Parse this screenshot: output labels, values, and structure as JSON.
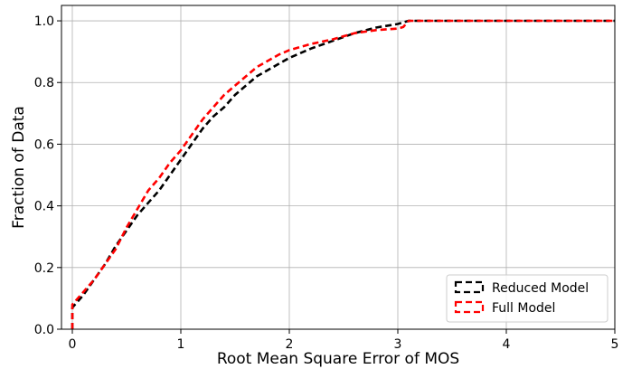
{
  "chart_data": {
    "type": "line",
    "title": "",
    "xlabel": "Root Mean Square Error of MOS",
    "ylabel": "Fraction of Data",
    "xlim": [
      -0.1,
      5
    ],
    "ylim": [
      0,
      1.05
    ],
    "xticks": [
      0,
      1,
      2,
      3,
      4,
      5
    ],
    "xtick_labels": [
      "0",
      "1",
      "2",
      "3",
      "4",
      "5"
    ],
    "yticks": [
      0,
      0.2,
      0.4,
      0.6,
      0.8,
      1.0
    ],
    "ytick_labels": [
      "0.0",
      "0.2",
      "0.4",
      "0.6",
      "0.8",
      "1.0"
    ],
    "grid": true,
    "legend_position": "bottom-right",
    "series": [
      {
        "name": "Reduced Model",
        "color": "#000000",
        "dash": "dashed",
        "points": [
          [
            0,
            0
          ],
          [
            0,
            0.07
          ],
          [
            0.1,
            0.11
          ],
          [
            0.2,
            0.16
          ],
          [
            0.3,
            0.21
          ],
          [
            0.4,
            0.27
          ],
          [
            0.5,
            0.32
          ],
          [
            0.6,
            0.37
          ],
          [
            0.7,
            0.41
          ],
          [
            0.8,
            0.45
          ],
          [
            0.9,
            0.5
          ],
          [
            1.0,
            0.55
          ],
          [
            1.1,
            0.6
          ],
          [
            1.2,
            0.65
          ],
          [
            1.3,
            0.69
          ],
          [
            1.4,
            0.72
          ],
          [
            1.5,
            0.76
          ],
          [
            1.6,
            0.79
          ],
          [
            1.7,
            0.82
          ],
          [
            1.8,
            0.84
          ],
          [
            1.9,
            0.86
          ],
          [
            2.0,
            0.88
          ],
          [
            2.2,
            0.91
          ],
          [
            2.4,
            0.935
          ],
          [
            2.6,
            0.96
          ],
          [
            2.8,
            0.978
          ],
          [
            3.0,
            0.99
          ],
          [
            3.1,
            1.0
          ],
          [
            5,
            1.0
          ]
        ]
      },
      {
        "name": "Full Model",
        "color": "#ff0000",
        "dash": "dashed",
        "points": [
          [
            0,
            0
          ],
          [
            0,
            0.08
          ],
          [
            0.1,
            0.12
          ],
          [
            0.2,
            0.16
          ],
          [
            0.3,
            0.21
          ],
          [
            0.4,
            0.26
          ],
          [
            0.5,
            0.33
          ],
          [
            0.6,
            0.39
          ],
          [
            0.7,
            0.45
          ],
          [
            0.8,
            0.49
          ],
          [
            0.9,
            0.54
          ],
          [
            1.0,
            0.58
          ],
          [
            1.1,
            0.63
          ],
          [
            1.2,
            0.68
          ],
          [
            1.3,
            0.72
          ],
          [
            1.4,
            0.76
          ],
          [
            1.5,
            0.79
          ],
          [
            1.6,
            0.82
          ],
          [
            1.7,
            0.85
          ],
          [
            1.8,
            0.87
          ],
          [
            1.9,
            0.89
          ],
          [
            2.0,
            0.905
          ],
          [
            2.2,
            0.925
          ],
          [
            2.4,
            0.94
          ],
          [
            2.6,
            0.96
          ],
          [
            2.8,
            0.97
          ],
          [
            3.0,
            0.975
          ],
          [
            3.05,
            0.98
          ],
          [
            3.1,
            1.0
          ],
          [
            5,
            1.0
          ]
        ]
      }
    ]
  }
}
